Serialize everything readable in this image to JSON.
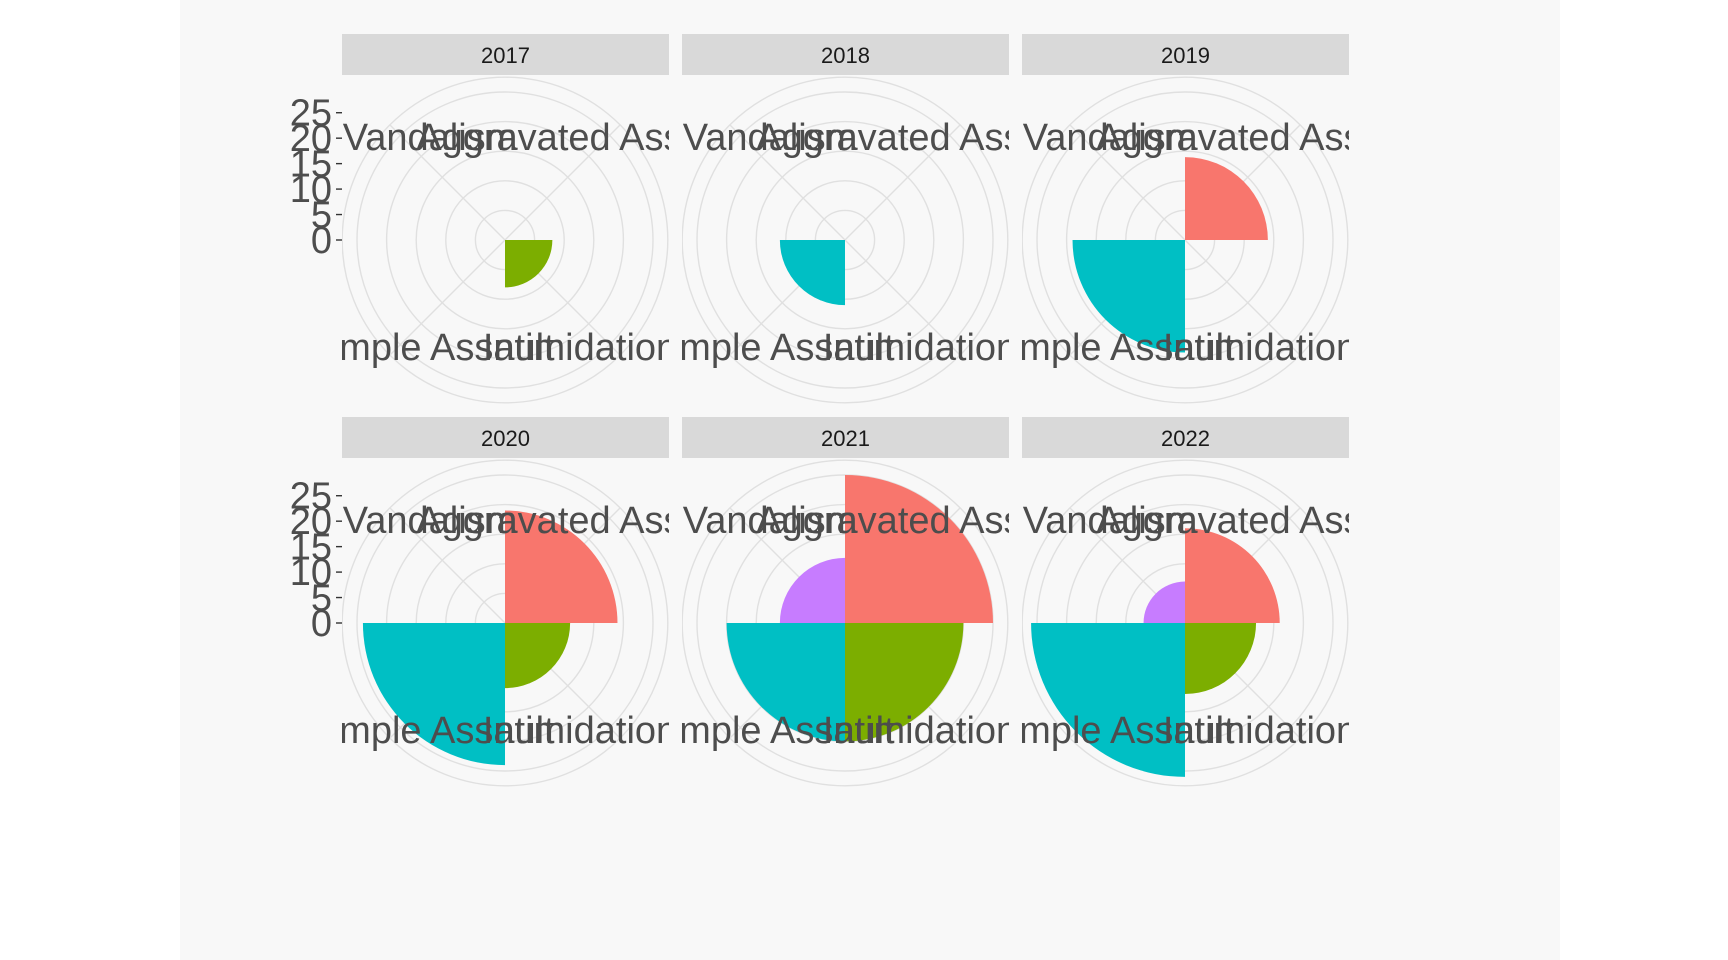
{
  "chart_data": {
    "type": "polar-bar",
    "facet_variable": "year",
    "categories": [
      "Aggravated Assault",
      "Intimidation",
      "Simple Assault",
      "Vandalism"
    ],
    "colors": {
      "Aggravated Assault": "#F8766D",
      "Intimidation": "#7CAE00",
      "Simple Assault": "#00BFC4",
      "Vandalism": "#C77CFF"
    },
    "r_ticks": [
      0,
      5,
      10,
      15,
      20,
      25
    ],
    "r_max": 25,
    "grid": true,
    "panels": [
      {
        "label": "2017",
        "values": {
          "Aggravated Assault": 0,
          "Intimidation": 8,
          "Simple Assault": 0,
          "Vandalism": 0
        }
      },
      {
        "label": "2018",
        "values": {
          "Aggravated Assault": 0,
          "Intimidation": 0,
          "Simple Assault": 11,
          "Vandalism": 0
        }
      },
      {
        "label": "2019",
        "values": {
          "Aggravated Assault": 14,
          "Intimidation": 0,
          "Simple Assault": 19,
          "Vandalism": 0
        }
      },
      {
        "label": "2020",
        "values": {
          "Aggravated Assault": 19,
          "Intimidation": 11,
          "Simple Assault": 24,
          "Vandalism": 0
        }
      },
      {
        "label": "2021",
        "values": {
          "Aggravated Assault": 25,
          "Intimidation": 20,
          "Simple Assault": 20,
          "Vandalism": 11
        }
      },
      {
        "label": "2022",
        "values": {
          "Aggravated Assault": 16,
          "Intimidation": 12,
          "Simple Assault": 26,
          "Vandalism": 7
        }
      }
    ]
  }
}
